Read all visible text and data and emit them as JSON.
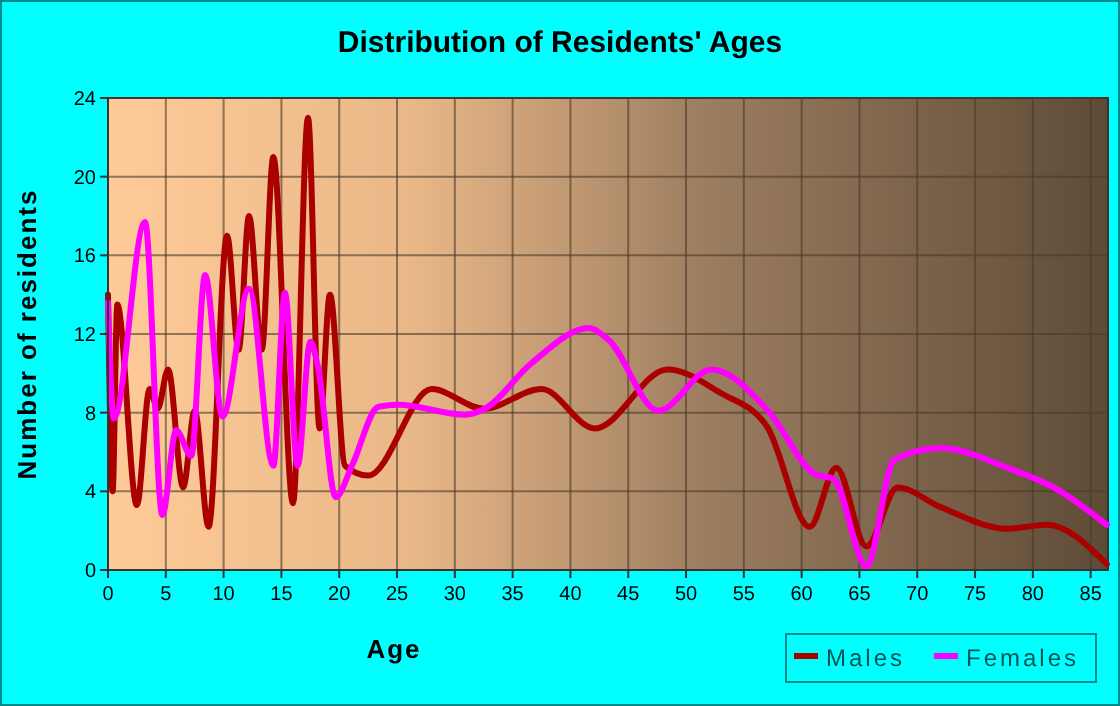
{
  "chart_data": {
    "type": "line",
    "title": "Distribution of Residents' Ages",
    "xlabel": "Age",
    "ylabel": "Number of residents",
    "xlim": [
      0,
      86.5
    ],
    "xticks": [
      0,
      5,
      10,
      15,
      20,
      25,
      30,
      35,
      40,
      45,
      50,
      55,
      60,
      65,
      70,
      75,
      80,
      85
    ],
    "ylim": [
      0,
      24
    ],
    "yticks": [
      0,
      4,
      8,
      12,
      16,
      20,
      24
    ],
    "grid": true,
    "legend": "bottom right",
    "series": [
      {
        "name": "Males",
        "color": "#aa0000",
        "x": [
          0,
          0.4,
          0.8,
          2.5,
          3.6,
          4.3,
          5.2,
          6.5,
          7.5,
          8.7,
          10.3,
          11.3,
          12.2,
          13.3,
          14.3,
          16,
          17.3,
          18.3,
          19.2,
          20.5,
          22.5,
          28,
          32.5,
          37.5,
          42.1,
          48.4,
          53,
          57,
          60.7,
          63,
          65.6,
          68.3,
          72,
          77.8,
          81.2,
          86.4
        ],
        "values": [
          14,
          4,
          13.5,
          3.3,
          9.2,
          8.2,
          10.2,
          4.2,
          8.1,
          2.2,
          17,
          11.2,
          18,
          11.2,
          21,
          3.4,
          23,
          7.2,
          14,
          5.3,
          4.8,
          9.2,
          8.2,
          9.2,
          7.2,
          10.2,
          9,
          7.3,
          2.2,
          5.2,
          1.2,
          4.2,
          3.2,
          2.1,
          2.3,
          0.3
        ]
      },
      {
        "name": "Females",
        "color": "#ff00ff",
        "x": [
          0,
          0.5,
          3.2,
          4.7,
          5.9,
          7.2,
          8.4,
          9.9,
          12.2,
          14.3,
          15.3,
          16.4,
          17.5,
          18.2,
          19.7,
          21.1,
          23.4,
          25.1,
          30.9,
          32.6,
          36.6,
          41.6,
          43.3,
          47.6,
          52.2,
          57.1,
          61.1,
          62.8,
          65.6,
          68,
          72,
          77.8,
          81.8,
          86.4
        ],
        "values": [
          13.6,
          7.7,
          17.7,
          2.8,
          7.1,
          5.8,
          15,
          7.8,
          14.3,
          5.3,
          14.1,
          5.3,
          11.6,
          10.2,
          3.7,
          5.3,
          8.3,
          8.4,
          7.9,
          8.2,
          10.5,
          12.3,
          11.7,
          8.1,
          10.2,
          8.1,
          4.9,
          4.6,
          0.2,
          5.6,
          6.2,
          5.2,
          4.2,
          2.3
        ]
      }
    ]
  }
}
